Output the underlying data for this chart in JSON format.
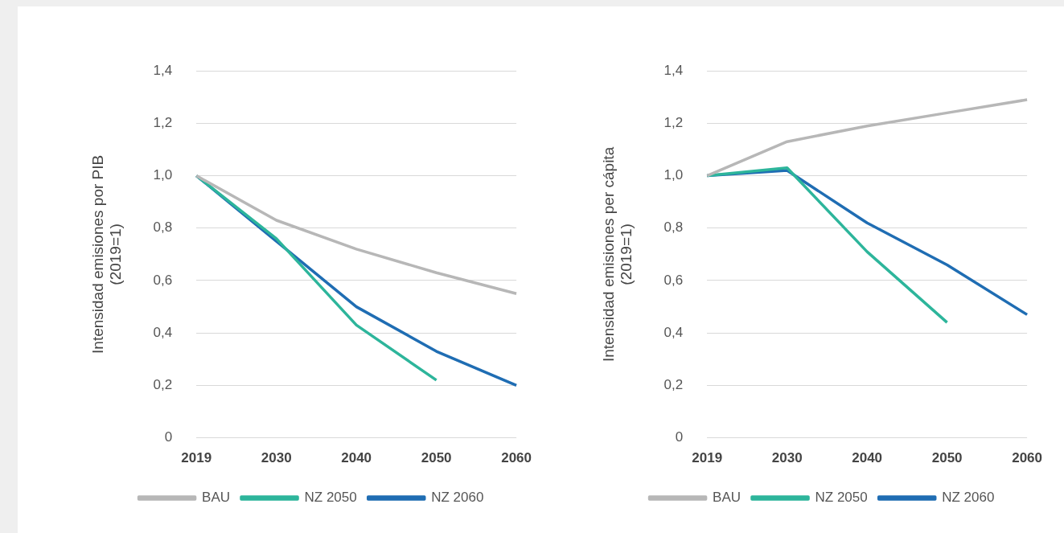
{
  "chart_data": [
    {
      "type": "line",
      "ylabel": "Intensidad emisiones por PIB\n(2019=1)",
      "categories": [
        "2019",
        "2030",
        "2040",
        "2050",
        "2060"
      ],
      "series": [
        {
          "name": "BAU",
          "color": "#b7b7b7",
          "values": [
            1.0,
            0.83,
            0.72,
            0.63,
            0.55
          ]
        },
        {
          "name": "NZ 2050",
          "color": "#2db59b",
          "values": [
            1.0,
            0.76,
            0.43,
            0.22,
            null
          ]
        },
        {
          "name": "NZ 2060",
          "color": "#1f6db3",
          "values": [
            1.0,
            0.75,
            0.5,
            0.33,
            0.2
          ]
        }
      ],
      "ylim": [
        0,
        1.4
      ],
      "yticks": [
        0,
        {
          "value": 0.2,
          "label": "0,2"
        },
        {
          "value": 0.4,
          "label": "0,4"
        },
        {
          "value": 0.6,
          "label": "0,6"
        },
        {
          "value": 0.8,
          "label": "0,8"
        },
        {
          "value": 1.0,
          "label": "1,0"
        },
        {
          "value": 1.2,
          "label": "1,2"
        },
        {
          "value": 1.4,
          "label": "1,4"
        }
      ],
      "grid": "y",
      "legend": "bottom"
    },
    {
      "type": "line",
      "ylabel": "Intensidad emisiones per cápita\n(2019=1)",
      "categories": [
        "2019",
        "2030",
        "2040",
        "2050",
        "2060"
      ],
      "series": [
        {
          "name": "BAU",
          "color": "#b7b7b7",
          "values": [
            1.0,
            1.13,
            1.19,
            1.24,
            1.29
          ]
        },
        {
          "name": "NZ 2050",
          "color": "#2db59b",
          "values": [
            1.0,
            1.03,
            0.71,
            0.44,
            null
          ]
        },
        {
          "name": "NZ 2060",
          "color": "#1f6db3",
          "values": [
            1.0,
            1.02,
            0.82,
            0.66,
            0.47
          ]
        }
      ],
      "ylim": [
        0,
        1.4
      ],
      "yticks": [
        0,
        {
          "value": 0.2,
          "label": "0,2"
        },
        {
          "value": 0.4,
          "label": "0,4"
        },
        {
          "value": 0.6,
          "label": "0,6"
        },
        {
          "value": 0.8,
          "label": "0,8"
        },
        {
          "value": 1.0,
          "label": "1,0"
        },
        {
          "value": 1.2,
          "label": "1,2"
        },
        {
          "value": 1.4,
          "label": "1,4"
        }
      ],
      "grid": "y",
      "legend": "bottom"
    }
  ]
}
